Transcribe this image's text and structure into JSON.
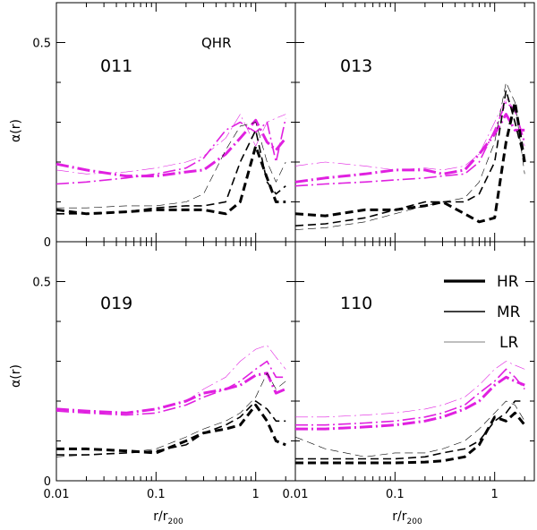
{
  "figure": {
    "ylabel": "α(r)",
    "xlabel_base": "r/r",
    "xlabel_sub": "200",
    "annotation": "QHR"
  },
  "legend": {
    "entries": [
      {
        "label": "HR",
        "weight": "thick"
      },
      {
        "label": "MR",
        "weight": "medium"
      },
      {
        "label": "LR",
        "weight": "thin"
      }
    ]
  },
  "colors": {
    "magenta": "#e020e0",
    "black": "#000000"
  },
  "chart_data": [
    {
      "type": "line",
      "panel": "011",
      "xscale": "log",
      "xlim": [
        0.01,
        2.5
      ],
      "ylim": [
        0,
        0.6
      ],
      "x_ticks": [
        "0.01",
        "0.1",
        "1"
      ],
      "y_ticks": [
        "0",
        "0.5"
      ],
      "x": [
        0.01,
        0.02,
        0.05,
        0.1,
        0.2,
        0.3,
        0.5,
        0.7,
        1.0,
        1.3,
        1.6,
        2.0
      ],
      "series": [
        {
          "name": "magenta HR",
          "color": "magenta",
          "weight": "thick",
          "dash": "dashdot",
          "values": [
            0.195,
            0.18,
            0.165,
            0.165,
            0.175,
            0.18,
            0.22,
            0.26,
            0.305,
            0.25,
            0.23,
            0.26
          ]
        },
        {
          "name": "magenta MR",
          "color": "magenta",
          "weight": "medium",
          "dash": "dashdot",
          "values": [
            0.145,
            0.15,
            0.16,
            0.17,
            0.185,
            0.21,
            0.28,
            0.3,
            0.275,
            0.3,
            0.2,
            0.31
          ]
        },
        {
          "name": "magenta LR",
          "color": "magenta",
          "weight": "thin",
          "dash": "dashdot",
          "values": [
            0.18,
            0.17,
            0.175,
            0.185,
            0.2,
            0.215,
            0.26,
            0.32,
            0.24,
            0.3,
            0.31,
            0.32
          ]
        },
        {
          "name": "black HR",
          "color": "black",
          "weight": "thick",
          "dash": "dashed",
          "values": [
            0.08,
            0.07,
            0.075,
            0.08,
            0.08,
            0.08,
            0.07,
            0.1,
            0.24,
            0.16,
            0.1,
            0.1
          ]
        },
        {
          "name": "black MR",
          "color": "black",
          "weight": "medium",
          "dash": "dashed",
          "values": [
            0.07,
            0.07,
            0.075,
            0.085,
            0.09,
            0.09,
            0.1,
            0.2,
            0.28,
            0.15,
            0.12,
            0.14
          ]
        },
        {
          "name": "black LR",
          "color": "black",
          "weight": "thin",
          "dash": "dashed",
          "values": [
            0.085,
            0.085,
            0.09,
            0.09,
            0.1,
            0.12,
            0.23,
            0.29,
            0.3,
            0.2,
            0.15,
            0.2
          ]
        }
      ]
    },
    {
      "type": "line",
      "panel": "013",
      "xscale": "log",
      "xlim": [
        0.01,
        2.5
      ],
      "ylim": [
        0,
        0.6
      ],
      "x_ticks": [
        "0.01",
        "0.1",
        "1"
      ],
      "y_ticks": [
        "0",
        "0.5"
      ],
      "x": [
        0.01,
        0.02,
        0.05,
        0.1,
        0.2,
        0.3,
        0.5,
        0.7,
        1.0,
        1.3,
        1.6,
        2.0
      ],
      "series": [
        {
          "name": "magenta HR",
          "color": "magenta",
          "weight": "thick",
          "dash": "dashdot",
          "values": [
            0.15,
            0.16,
            0.17,
            0.18,
            0.18,
            0.17,
            0.18,
            0.22,
            0.27,
            0.32,
            0.28,
            0.28
          ]
        },
        {
          "name": "magenta MR",
          "color": "magenta",
          "weight": "medium",
          "dash": "dashdot",
          "values": [
            0.14,
            0.145,
            0.15,
            0.155,
            0.16,
            0.165,
            0.17,
            0.2,
            0.28,
            0.35,
            0.33,
            0.25
          ]
        },
        {
          "name": "magenta LR",
          "color": "magenta",
          "weight": "thin",
          "dash": "dashdot",
          "values": [
            0.19,
            0.2,
            0.19,
            0.18,
            0.185,
            0.18,
            0.19,
            0.22,
            0.3,
            0.36,
            0.33,
            0.24
          ]
        },
        {
          "name": "black HR",
          "color": "black",
          "weight": "thick",
          "dash": "dashed",
          "values": [
            0.07,
            0.065,
            0.08,
            0.08,
            0.09,
            0.1,
            0.07,
            0.05,
            0.06,
            0.25,
            0.35,
            0.2
          ]
        },
        {
          "name": "black MR",
          "color": "black",
          "weight": "medium",
          "dash": "dashed",
          "values": [
            0.04,
            0.045,
            0.06,
            0.08,
            0.1,
            0.1,
            0.1,
            0.12,
            0.2,
            0.38,
            0.3,
            0.2
          ]
        },
        {
          "name": "black LR",
          "color": "black",
          "weight": "thin",
          "dash": "dashed",
          "values": [
            0.03,
            0.035,
            0.05,
            0.07,
            0.09,
            0.1,
            0.11,
            0.15,
            0.25,
            0.4,
            0.35,
            0.17
          ]
        }
      ]
    },
    {
      "type": "line",
      "panel": "019",
      "xscale": "log",
      "xlim": [
        0.01,
        2.5
      ],
      "ylim": [
        0,
        0.6
      ],
      "x_ticks": [
        "0.01",
        "0.1",
        "1"
      ],
      "y_ticks": [
        "0",
        "0.5"
      ],
      "x": [
        0.01,
        0.02,
        0.05,
        0.1,
        0.2,
        0.3,
        0.5,
        0.7,
        1.0,
        1.3,
        1.6,
        2.0
      ],
      "series": [
        {
          "name": "magenta HR",
          "color": "magenta",
          "weight": "thick",
          "dash": "dashdot",
          "values": [
            0.18,
            0.175,
            0.17,
            0.18,
            0.2,
            0.22,
            0.23,
            0.24,
            0.265,
            0.27,
            0.22,
            0.23
          ]
        },
        {
          "name": "magenta MR",
          "color": "magenta",
          "weight": "medium",
          "dash": "dashdot",
          "values": [
            0.175,
            0.17,
            0.165,
            0.17,
            0.19,
            0.21,
            0.23,
            0.25,
            0.28,
            0.3,
            0.26,
            0.26
          ]
        },
        {
          "name": "magenta LR",
          "color": "magenta",
          "weight": "thin",
          "dash": "dashdot",
          "values": [
            0.18,
            0.175,
            0.17,
            0.18,
            0.2,
            0.23,
            0.26,
            0.3,
            0.33,
            0.34,
            0.31,
            0.28
          ]
        },
        {
          "name": "black HR",
          "color": "black",
          "weight": "thick",
          "dash": "dashed",
          "values": [
            0.08,
            0.08,
            0.075,
            0.07,
            0.1,
            0.12,
            0.13,
            0.14,
            0.19,
            0.15,
            0.1,
            0.09
          ]
        },
        {
          "name": "black MR",
          "color": "black",
          "weight": "medium",
          "dash": "dashed",
          "values": [
            0.065,
            0.065,
            0.07,
            0.075,
            0.09,
            0.12,
            0.14,
            0.16,
            0.2,
            0.18,
            0.15,
            0.15
          ]
        },
        {
          "name": "black LR",
          "color": "black",
          "weight": "thin",
          "dash": "dashed",
          "values": [
            0.06,
            0.065,
            0.07,
            0.08,
            0.11,
            0.13,
            0.15,
            0.17,
            0.21,
            0.27,
            0.23,
            0.25
          ]
        }
      ]
    },
    {
      "type": "line",
      "panel": "110",
      "xscale": "log",
      "xlim": [
        0.01,
        2.5
      ],
      "ylim": [
        0,
        0.6
      ],
      "x_ticks": [
        "0.01",
        "0.1",
        "1"
      ],
      "y_ticks": [
        "0",
        "0.5"
      ],
      "x": [
        0.01,
        0.02,
        0.05,
        0.1,
        0.2,
        0.3,
        0.5,
        0.7,
        1.0,
        1.3,
        1.6,
        2.0
      ],
      "series": [
        {
          "name": "magenta HR",
          "color": "magenta",
          "weight": "thick",
          "dash": "dashdot",
          "values": [
            0.13,
            0.13,
            0.135,
            0.14,
            0.15,
            0.16,
            0.18,
            0.2,
            0.24,
            0.26,
            0.25,
            0.24
          ]
        },
        {
          "name": "magenta MR",
          "color": "magenta",
          "weight": "medium",
          "dash": "dashdot",
          "values": [
            0.14,
            0.14,
            0.145,
            0.15,
            0.16,
            0.17,
            0.19,
            0.22,
            0.25,
            0.28,
            0.26,
            0.23
          ]
        },
        {
          "name": "magenta LR",
          "color": "magenta",
          "weight": "thin",
          "dash": "dashdot",
          "values": [
            0.16,
            0.16,
            0.165,
            0.17,
            0.18,
            0.19,
            0.21,
            0.24,
            0.28,
            0.3,
            0.29,
            0.28
          ]
        },
        {
          "name": "black HR",
          "color": "black",
          "weight": "thick",
          "dash": "dashed",
          "values": [
            0.045,
            0.045,
            0.045,
            0.045,
            0.047,
            0.05,
            0.06,
            0.09,
            0.16,
            0.15,
            0.17,
            0.14
          ]
        },
        {
          "name": "black MR",
          "color": "black",
          "weight": "medium",
          "dash": "dashed",
          "values": [
            0.055,
            0.055,
            0.055,
            0.055,
            0.06,
            0.07,
            0.08,
            0.1,
            0.15,
            0.17,
            0.2,
            0.2
          ]
        },
        {
          "name": "black LR",
          "color": "black",
          "weight": "thin",
          "dash": "dashed",
          "values": [
            0.11,
            0.08,
            0.06,
            0.07,
            0.07,
            0.08,
            0.1,
            0.13,
            0.17,
            0.2,
            0.19,
            0.15
          ]
        }
      ]
    }
  ]
}
